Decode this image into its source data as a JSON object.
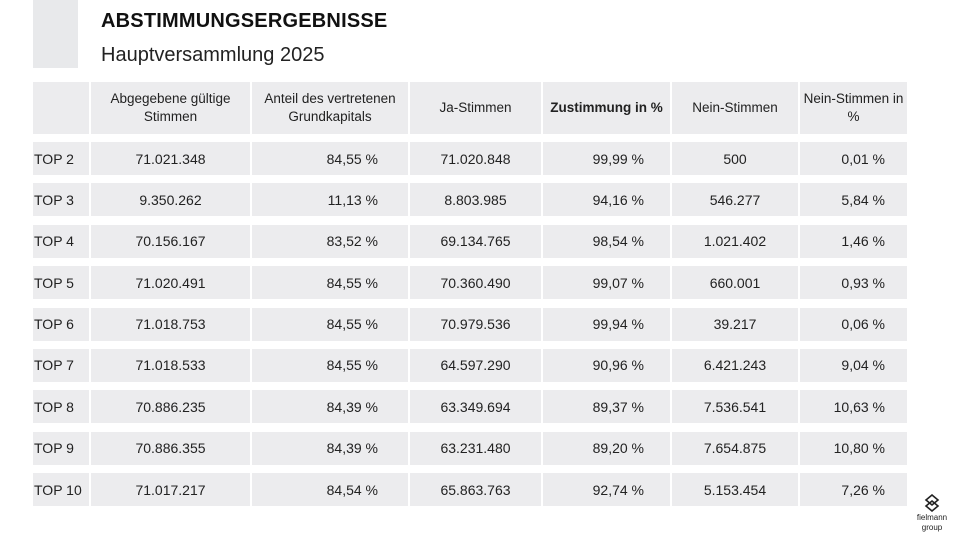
{
  "header": {
    "title": "ABSTIMMUNGSERGEBNISSE",
    "subtitle": "Hauptversammlung 2025"
  },
  "table": {
    "columns": [
      "",
      "Abgegebene gültige Stimmen",
      "Anteil des vertretenen Grundkapitals",
      "Ja-Stimmen",
      "Zustimmung in %",
      "Nein-Stimmen",
      "Nein-Stimmen in %"
    ],
    "rows": [
      [
        "TOP 2",
        "71.021.348",
        "84,55 %",
        "71.020.848",
        "99,99 %",
        "500",
        "0,01 %"
      ],
      [
        "TOP 3",
        "9.350.262",
        "11,13 %",
        "8.803.985",
        "94,16 %",
        "546.277",
        "5,84 %"
      ],
      [
        "TOP 4",
        "70.156.167",
        "83,52 %",
        "69.134.765",
        "98,54 %",
        "1.021.402",
        "1,46 %"
      ],
      [
        "TOP 5",
        "71.020.491",
        "84,55 %",
        "70.360.490",
        "99,07 %",
        "660.001",
        "0,93 %"
      ],
      [
        "TOP 6",
        "71.018.753",
        "84,55 %",
        "70.979.536",
        "99,94 %",
        "39.217",
        "0,06 %"
      ],
      [
        "TOP 7",
        "71.018.533",
        "84,55 %",
        "64.597.290",
        "90,96 %",
        "6.421.243",
        "9,04 %"
      ],
      [
        "TOP 8",
        "70.886.235",
        "84,39 %",
        "63.349.694",
        "89,37 %",
        "7.536.541",
        "10,63 %"
      ],
      [
        "TOP 9",
        "70.886.355",
        "84,39 %",
        "63.231.480",
        "89,20 %",
        "7.654.875",
        "10,80 %"
      ],
      [
        "TOP 10",
        "71.017.217",
        "84,54 %",
        "65.863.763",
        "92,74 %",
        "5.153.454",
        "7,26 %"
      ]
    ]
  },
  "logo": {
    "line1": "fielmann",
    "line2": "group",
    "icon": "fielmann-logo-icon"
  },
  "colors": {
    "cell_background": "#ececee",
    "corner_block": "#e8e9eb",
    "text": "#222222"
  }
}
